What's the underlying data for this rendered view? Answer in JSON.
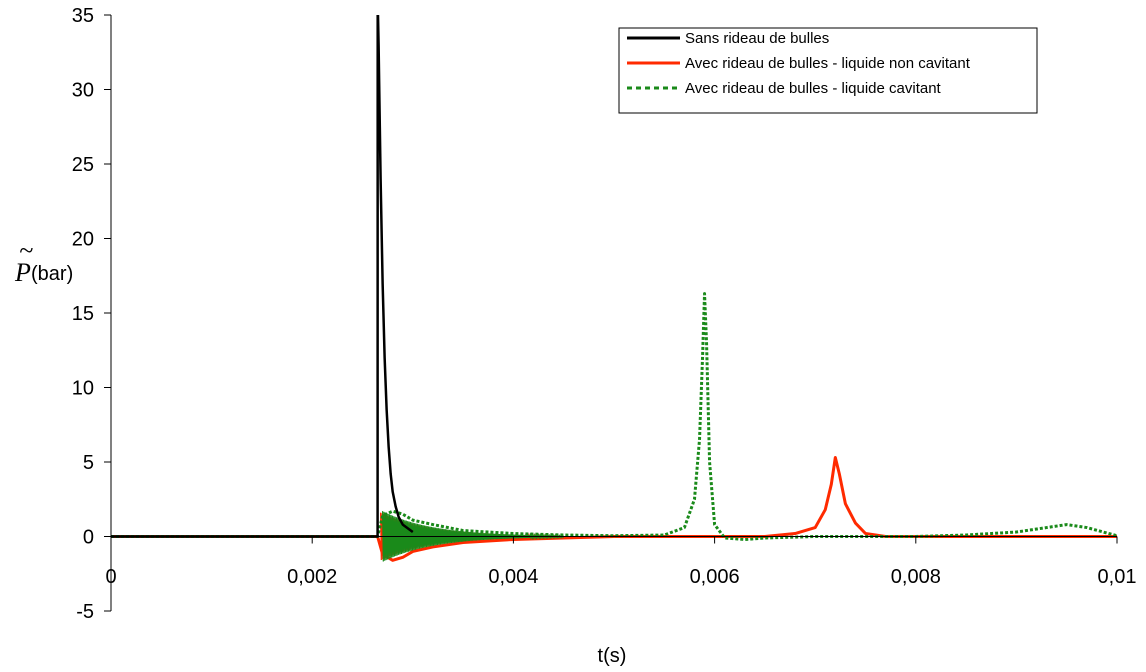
{
  "chart_data": {
    "type": "line",
    "title": "",
    "xlabel": "t(s)",
    "ylabel": {
      "symbol": "P",
      "accent": "~",
      "unit": "(bar)"
    },
    "xlim": [
      0,
      0.01
    ],
    "ylim": [
      -5,
      35
    ],
    "x_ticks": [
      0,
      0.002,
      0.004,
      0.006,
      0.008,
      0.01
    ],
    "x_tick_labels": [
      "0",
      "0,002",
      "0,004",
      "0,006",
      "0,008",
      "0,01"
    ],
    "y_ticks": [
      -5,
      0,
      5,
      10,
      15,
      20,
      25,
      30,
      35
    ],
    "y_tick_labels": [
      "-5",
      "0",
      "5",
      "10",
      "15",
      "20",
      "25",
      "30",
      "35"
    ],
    "grid": false,
    "legend_position": "top-right",
    "series": [
      {
        "name": "Sans rideau de bulles",
        "color": "#000000",
        "dash": "solid",
        "x": [
          0,
          0.00265,
          0.002651,
          0.00266,
          0.00268,
          0.0027,
          0.00272,
          0.00274,
          0.00276,
          0.00278,
          0.0028,
          0.00283,
          0.00286,
          0.0029,
          0.003
        ],
        "y": [
          0,
          0,
          36,
          33,
          24,
          17,
          12,
          8.5,
          6,
          4.2,
          3,
          2,
          1.3,
          0.8,
          0.3
        ]
      },
      {
        "name": "Avec rideau de bulles - liquide non cavitant",
        "color": "#ff2a00",
        "dash": "solid",
        "x": [
          0,
          0.0026,
          0.00265,
          0.0027,
          0.0028,
          0.0029,
          0.003,
          0.0032,
          0.0035,
          0.004,
          0.0045,
          0.005,
          0.0055,
          0.006,
          0.0065,
          0.0068,
          0.007,
          0.0071,
          0.00716,
          0.0072,
          0.00724,
          0.0073,
          0.0074,
          0.0075,
          0.0077,
          0.008,
          0.009,
          0.0095,
          0.01
        ],
        "y": [
          0,
          0,
          0,
          -1.2,
          -1.6,
          -1.4,
          -1,
          -0.7,
          -0.4,
          -0.2,
          -0.1,
          0,
          0,
          0,
          0,
          0.2,
          0.6,
          1.8,
          3.5,
          5.3,
          4.2,
          2.2,
          0.9,
          0.2,
          0,
          0,
          0,
          0,
          0
        ]
      },
      {
        "name": "Avec rideau de bulles - liquide cavitant",
        "color": "#1a8a1a",
        "dash": "dotted",
        "x": [
          0,
          0.0026,
          0.00265,
          0.0027,
          0.0028,
          0.0029,
          0.003,
          0.0032,
          0.0035,
          0.004,
          0.0045,
          0.005,
          0.0055,
          0.0057,
          0.0058,
          0.00585,
          0.00588,
          0.0059,
          0.00592,
          0.00595,
          0.006,
          0.0061,
          0.0063,
          0.0065,
          0.007,
          0.0075,
          0.008,
          0.0085,
          0.009,
          0.0093,
          0.0095,
          0.0097,
          0.01
        ],
        "y": [
          0,
          0,
          0,
          1.4,
          1.7,
          1.5,
          1.1,
          0.8,
          0.4,
          0.2,
          0.1,
          0.05,
          0.1,
          0.6,
          2.5,
          6.5,
          12,
          16.3,
          13,
          5,
          0.8,
          -0.1,
          -0.2,
          -0.1,
          0,
          0,
          0,
          0.1,
          0.3,
          0.6,
          0.8,
          0.6,
          0.05
        ]
      }
    ]
  }
}
